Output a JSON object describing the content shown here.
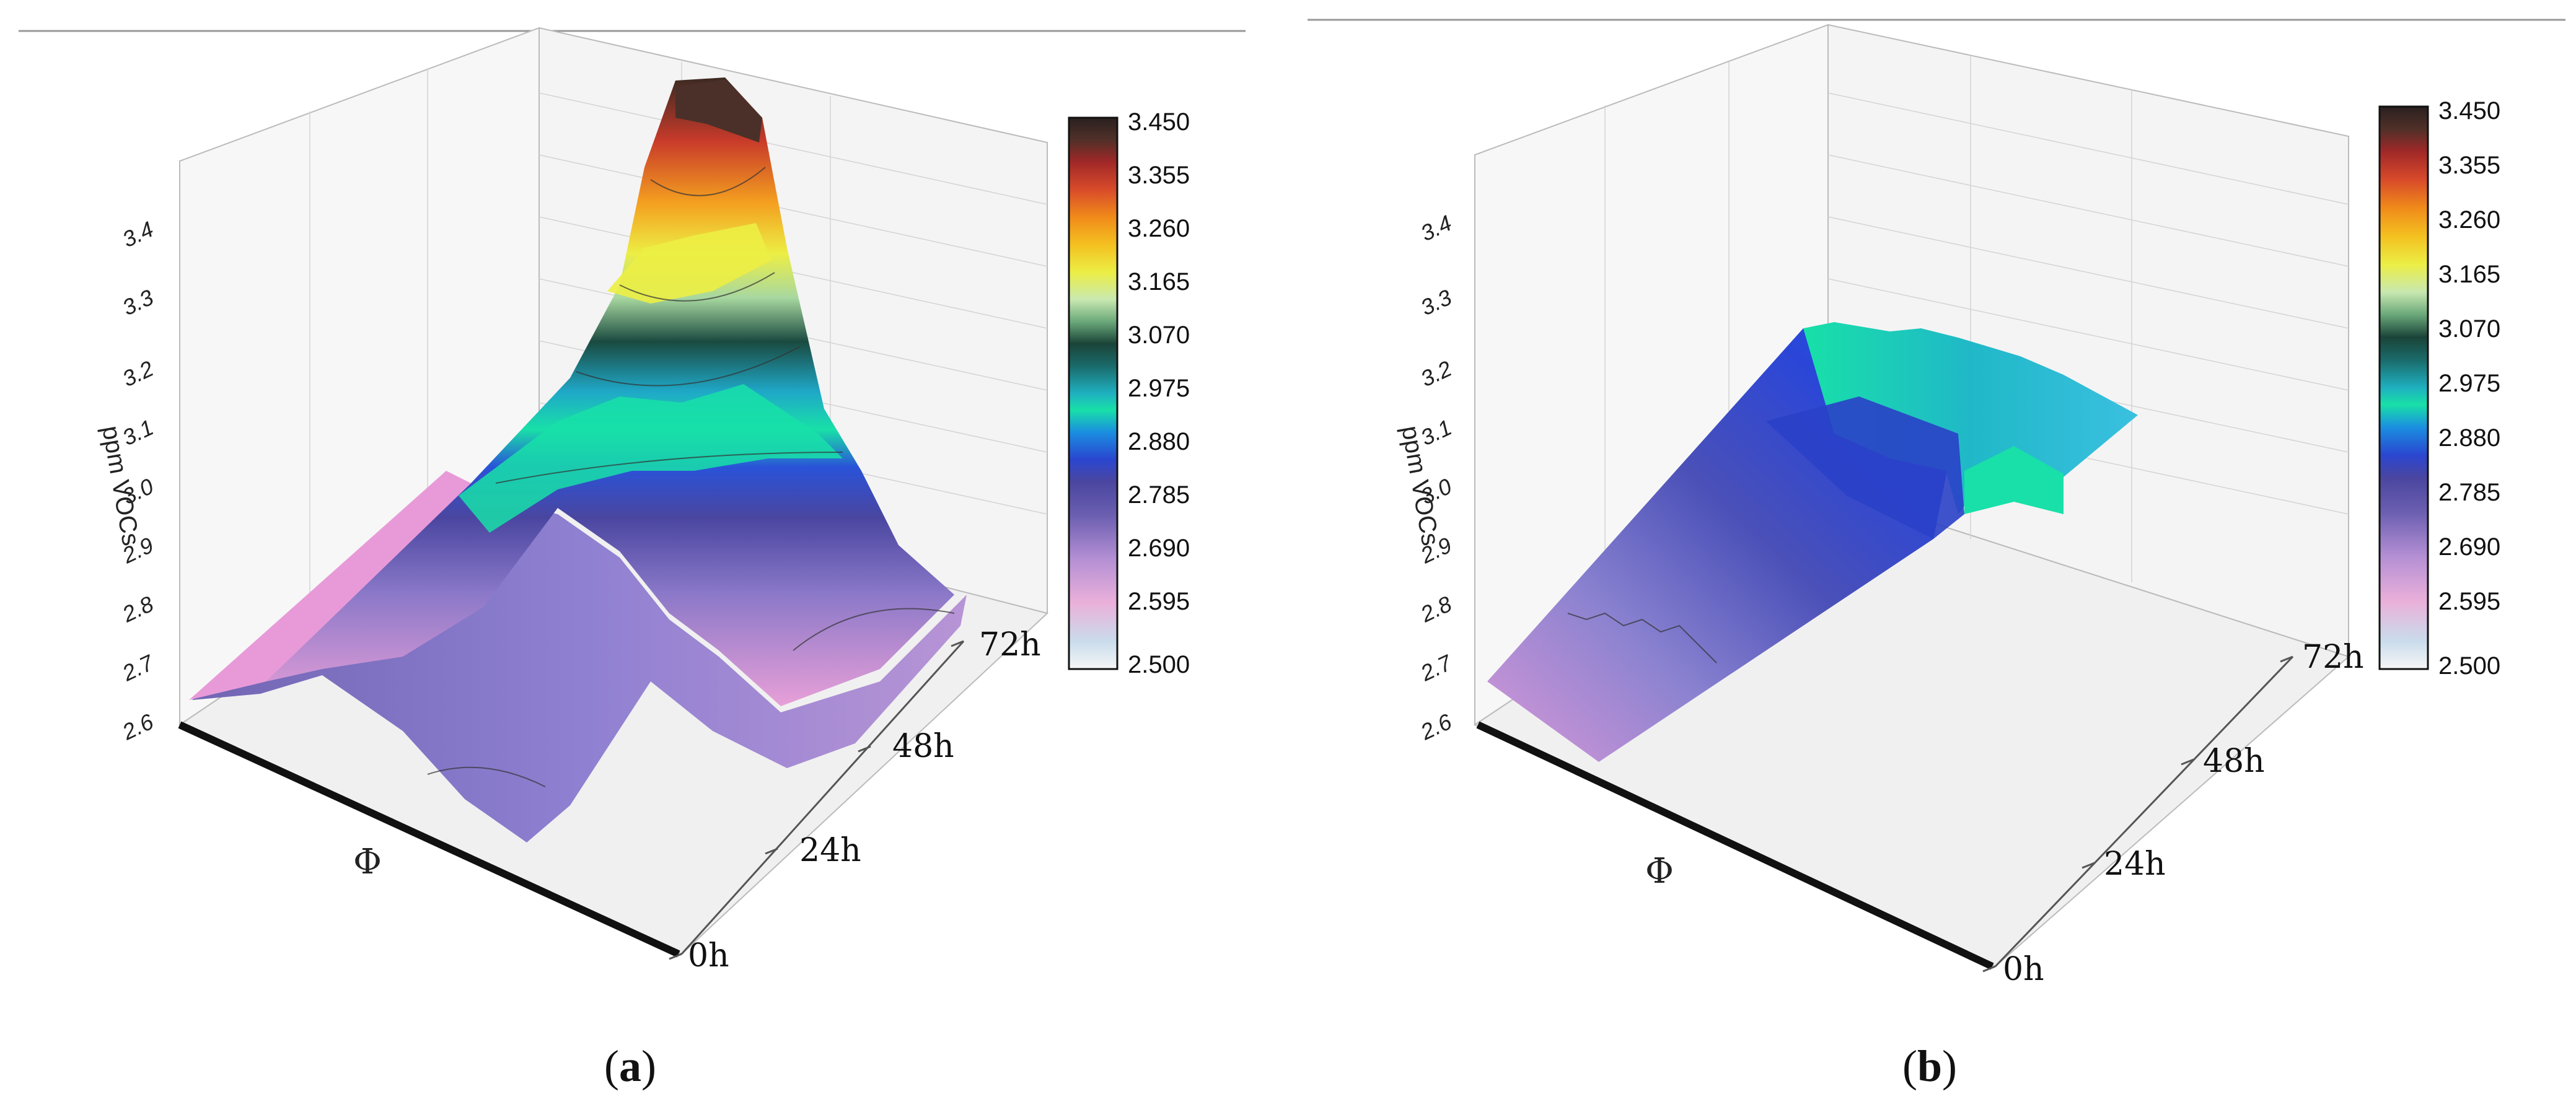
{
  "panels": [
    {
      "caption_open": "(",
      "caption_letter": "a",
      "caption_close": ")"
    },
    {
      "caption_open": "(",
      "caption_letter": "b",
      "caption_close": ")"
    }
  ],
  "chart_data": [
    {
      "type": "surface3d",
      "panel": "a",
      "x_label": "Φ",
      "y_label": "ppm VOCs",
      "z_ticks": [
        "0h",
        "24h",
        "48h",
        "72h"
      ],
      "y_ticks": [
        "2.6",
        "2.7",
        "2.8",
        "2.9",
        "3.0",
        "3.1",
        "3.2",
        "3.3",
        "3.4"
      ],
      "colorbar_ticks": [
        "3.450",
        "3.355",
        "3.260",
        "3.165",
        "3.070",
        "2.975",
        "2.880",
        "2.785",
        "2.690",
        "2.595",
        "2.500"
      ],
      "value_range": [
        2.5,
        3.45
      ],
      "surface_peak_value": 3.45,
      "surface_min_value": 2.6
    },
    {
      "type": "surface3d",
      "panel": "b",
      "x_label": "Φ",
      "y_label": "ppm VOCs",
      "z_ticks": [
        "0h",
        "24h",
        "48h",
        "72h"
      ],
      "y_ticks": [
        "2.6",
        "2.7",
        "2.8",
        "2.9",
        "3.0",
        "3.1",
        "3.2",
        "3.3",
        "3.4"
      ],
      "colorbar_ticks": [
        "3.450",
        "3.355",
        "3.260",
        "3.165",
        "3.070",
        "2.975",
        "2.880",
        "2.785",
        "2.690",
        "2.595",
        "2.500"
      ],
      "value_range": [
        2.5,
        3.45
      ],
      "surface_peak_value": 3.1,
      "surface_min_value": 2.65
    }
  ],
  "colormap": [
    "#f2f2f2",
    "#c9dcec",
    "#e8a7d6",
    "#c58fd4",
    "#7a6ab8",
    "#58509a",
    "#3a3a9c",
    "#2a55d8",
    "#1a8fe0",
    "#18e0a8",
    "#1fb0c0",
    "#1a7a7a",
    "#1a4a40",
    "#2e6a4a",
    "#9ec99a",
    "#d8f0c0",
    "#e8ea40",
    "#f3c020",
    "#f08a1a",
    "#d84a2a",
    "#a82a2a",
    "#5a2a1e",
    "#2a2020"
  ]
}
